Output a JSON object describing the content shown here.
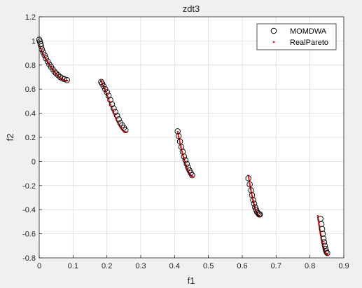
{
  "chart_data": {
    "type": "scatter",
    "title": "zdt3",
    "xlabel": "f1",
    "ylabel": "f2",
    "xlim": [
      0,
      0.9
    ],
    "ylim": [
      -0.8,
      1.2
    ],
    "x_ticks": [
      "0",
      "0.1",
      "0.2",
      "0.3",
      "0.4",
      "0.5",
      "0.6",
      "0.7",
      "0.8",
      "0.9"
    ],
    "y_ticks": [
      "-0.8",
      "-0.6",
      "-0.4",
      "-0.2",
      "0",
      "0.2",
      "0.4",
      "0.6",
      "0.8",
      "1",
      "1.2"
    ],
    "grid": true,
    "legend_position": "top-right",
    "series": [
      {
        "name": "MOMDWA",
        "marker": "open-circle",
        "color": "#000000",
        "x": [
          0.0,
          0.002,
          0.004,
          0.006,
          0.008,
          0.012,
          0.016,
          0.02,
          0.025,
          0.03,
          0.035,
          0.04,
          0.045,
          0.05,
          0.056,
          0.062,
          0.068,
          0.074,
          0.082,
          0.183,
          0.186,
          0.19,
          0.195,
          0.2,
          0.205,
          0.21,
          0.215,
          0.22,
          0.225,
          0.23,
          0.235,
          0.24,
          0.245,
          0.25,
          0.255,
          0.409,
          0.412,
          0.416,
          0.42,
          0.424,
          0.428,
          0.432,
          0.436,
          0.44,
          0.444,
          0.448,
          0.452,
          0.618,
          0.622,
          0.626,
          0.629,
          0.632,
          0.635,
          0.638,
          0.641,
          0.644,
          0.647,
          0.65,
          0.652,
          0.831,
          0.834,
          0.836,
          0.838,
          0.84,
          0.842,
          0.844,
          0.846,
          0.848,
          0.851
        ],
        "y": [
          1.01,
          0.995,
          0.975,
          0.955,
          0.93,
          0.905,
          0.88,
          0.855,
          0.83,
          0.805,
          0.785,
          0.765,
          0.745,
          0.73,
          0.715,
          0.7,
          0.69,
          0.683,
          0.675,
          0.66,
          0.645,
          0.625,
          0.6,
          0.575,
          0.545,
          0.51,
          0.475,
          0.44,
          0.41,
          0.38,
          0.35,
          0.32,
          0.3,
          0.28,
          0.26,
          0.25,
          0.21,
          0.165,
          0.12,
          0.08,
          0.04,
          0.01,
          -0.02,
          -0.05,
          -0.075,
          -0.095,
          -0.115,
          -0.14,
          -0.19,
          -0.24,
          -0.28,
          -0.32,
          -0.35,
          -0.38,
          -0.4,
          -0.42,
          -0.43,
          -0.44,
          -0.44,
          -0.475,
          -0.52,
          -0.56,
          -0.6,
          -0.64,
          -0.67,
          -0.7,
          -0.725,
          -0.745,
          -0.76
        ]
      },
      {
        "name": "RealPareto",
        "marker": "dot",
        "color": "#ff0000",
        "segments": [
          [
            0.0,
            0.083
          ],
          [
            0.182,
            0.258
          ],
          [
            0.409,
            0.454
          ],
          [
            0.618,
            0.653
          ],
          [
            0.823,
            0.852
          ]
        ]
      }
    ]
  }
}
